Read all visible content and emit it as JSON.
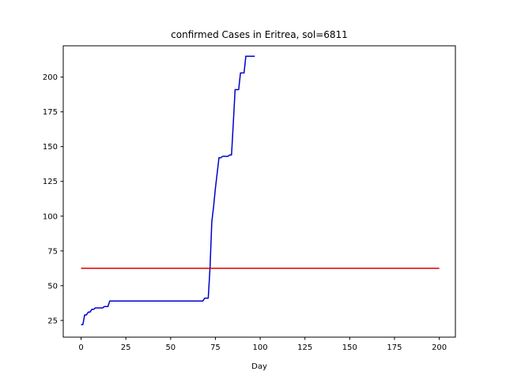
{
  "chart_data": {
    "type": "line",
    "title": "confirmed Cases in Eritrea, sol=6811",
    "xlabel": "Day",
    "ylabel": "",
    "xlim": [
      -9.95,
      209.0
    ],
    "ylim": [
      13,
      222.5
    ],
    "x_ticks": [
      0,
      25,
      50,
      75,
      100,
      125,
      150,
      175,
      200
    ],
    "y_ticks": [
      25,
      50,
      75,
      100,
      125,
      150,
      175,
      200
    ],
    "grid": false,
    "series": [
      {
        "color": "#0000cc",
        "x": [
          0,
          1,
          2,
          3,
          4,
          5,
          6,
          7,
          8,
          9,
          10,
          11,
          12,
          13,
          14,
          15,
          16,
          17,
          68,
          69,
          70,
          71,
          72,
          73,
          74,
          75,
          76,
          77,
          78,
          79,
          80,
          81,
          82,
          83,
          84,
          85,
          86,
          87,
          88,
          89,
          90,
          91,
          92,
          93,
          94,
          95,
          96,
          97
        ],
        "y": [
          22,
          22,
          29,
          29,
          31,
          31,
          33,
          33,
          34,
          34,
          34,
          34,
          34,
          35,
          35,
          35,
          39,
          39,
          39,
          41,
          41,
          41,
          63,
          96,
          107,
          120,
          131,
          142,
          142,
          143,
          143,
          143,
          143,
          144,
          144,
          167,
          191,
          191,
          191,
          203,
          203,
          203,
          215,
          215,
          215,
          215,
          215,
          215
        ]
      },
      {
        "color": "#dd0000",
        "x": [
          0,
          200
        ],
        "y": [
          62.5,
          62.5
        ]
      }
    ]
  }
}
